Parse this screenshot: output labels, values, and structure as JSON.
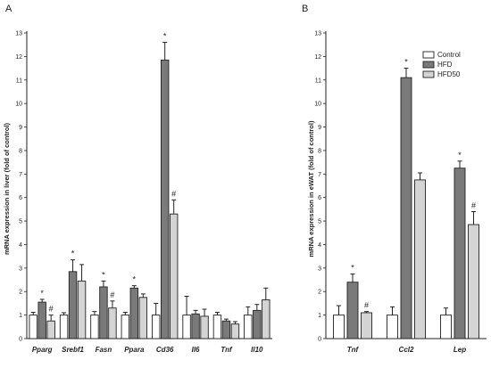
{
  "chart_data": [
    {
      "type": "bar",
      "panel_label": "A",
      "ylabel": "mRNA expression in liver (fold of control)",
      "ylim": [
        0,
        13
      ],
      "yticks": [
        0,
        1,
        2,
        3,
        4,
        5,
        6,
        7,
        8,
        9,
        10,
        11,
        12,
        13
      ],
      "categories": [
        "Pparg",
        "Srebf1",
        "Fasn",
        "Ppara",
        "Cd36",
        "Il6",
        "Tnf",
        "Il10"
      ],
      "series": [
        {
          "name": "Control",
          "values": [
            1.0,
            1.0,
            1.0,
            1.0,
            1.0,
            1.0,
            1.0,
            1.0
          ],
          "errors": [
            0.12,
            0.1,
            0.15,
            0.12,
            0.5,
            0.8,
            0.12,
            0.35
          ]
        },
        {
          "name": "HFD",
          "values": [
            1.55,
            2.85,
            2.2,
            2.15,
            11.85,
            1.05,
            0.75,
            1.2
          ],
          "errors": [
            0.12,
            0.5,
            0.25,
            0.1,
            0.75,
            0.15,
            0.08,
            0.25
          ]
        },
        {
          "name": "HFD50",
          "values": [
            0.75,
            2.45,
            1.3,
            1.75,
            5.3,
            0.95,
            0.62,
            1.65
          ],
          "errors": [
            0.25,
            0.7,
            0.3,
            0.15,
            0.6,
            0.3,
            0.1,
            0.5
          ]
        }
      ],
      "annotations": [
        {
          "category": "Pparg",
          "series": "HFD",
          "text": "*"
        },
        {
          "category": "Pparg",
          "series": "HFD50",
          "text": "#"
        },
        {
          "category": "Srebf1",
          "series": "HFD",
          "text": "*"
        },
        {
          "category": "Fasn",
          "series": "HFD",
          "text": "*"
        },
        {
          "category": "Fasn",
          "series": "HFD50",
          "text": "#"
        },
        {
          "category": "Ppara",
          "series": "HFD",
          "text": "*"
        },
        {
          "category": "Cd36",
          "series": "HFD",
          "text": "*"
        },
        {
          "category": "Cd36",
          "series": "HFD50",
          "text": "#"
        }
      ]
    },
    {
      "type": "bar",
      "panel_label": "B",
      "ylabel": "mRNA expression in eWAT (fold of control)",
      "ylim": [
        0,
        13
      ],
      "yticks": [
        0,
        1,
        2,
        3,
        4,
        5,
        6,
        7,
        8,
        9,
        10,
        11,
        12,
        13
      ],
      "categories": [
        "Tnf",
        "Ccl2",
        "Lep"
      ],
      "series": [
        {
          "name": "Control",
          "values": [
            1.0,
            1.0,
            1.0
          ],
          "errors": [
            0.4,
            0.35,
            0.3
          ]
        },
        {
          "name": "HFD",
          "values": [
            2.4,
            11.1,
            7.25
          ],
          "errors": [
            0.35,
            0.4,
            0.3
          ]
        },
        {
          "name": "HFD50",
          "values": [
            1.1,
            6.75,
            4.85
          ],
          "errors": [
            0.05,
            0.3,
            0.55
          ]
        }
      ],
      "annotations": [
        {
          "category": "Tnf",
          "series": "HFD",
          "text": "*"
        },
        {
          "category": "Tnf",
          "series": "HFD50",
          "text": "#"
        },
        {
          "category": "Ccl2",
          "series": "HFD",
          "text": "*"
        },
        {
          "category": "Lep",
          "series": "HFD",
          "text": "*"
        },
        {
          "category": "Lep",
          "series": "HFD50",
          "text": "#"
        }
      ],
      "legend": {
        "entries": [
          "Control",
          "HFD",
          "HFD50"
        ],
        "placement": "top-right"
      }
    }
  ],
  "colors": {
    "Control": "#ffffff",
    "HFD": "#7a7a7a",
    "HFD50": "#d4d4d4",
    "stroke": "#222222"
  }
}
